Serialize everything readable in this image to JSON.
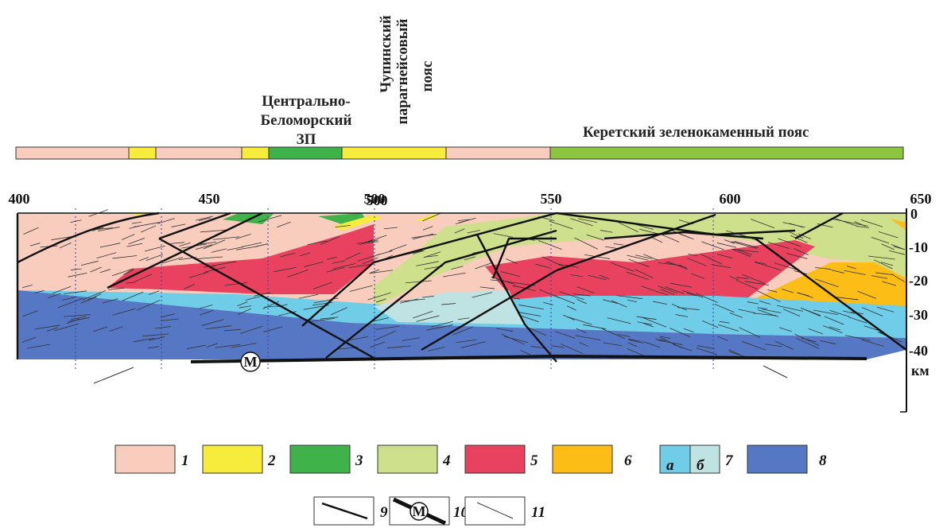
{
  "zones": {
    "central_belomorsky": [
      "Центрально-",
      "Беломорский",
      "ЗП"
    ],
    "chupinsky": [
      "Чупинский",
      "парагнейсовый",
      "пояс"
    ],
    "keretsky": "Керетский зеленокаменный пояс"
  },
  "distance_labels": [
    "400",
    "450",
    "500",
    "500",
    "550",
    "600",
    "650"
  ],
  "depth_labels": [
    "0",
    "-10",
    "-20",
    "-30",
    "-40"
  ],
  "depth_unit": "км",
  "moho_symbol": "M",
  "legend": [
    "1",
    "2",
    "3",
    "4",
    "5",
    "6",
    "7",
    "8",
    "9",
    "10",
    "11"
  ],
  "legend_sublabels": [
    "а",
    "б"
  ]
}
